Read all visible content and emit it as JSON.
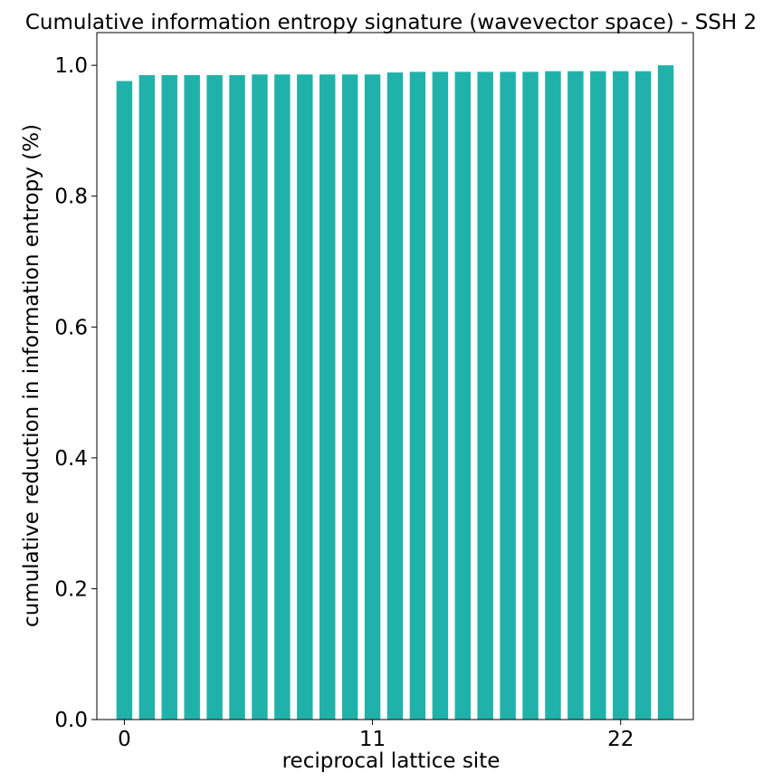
{
  "chart_data": {
    "type": "bar",
    "title": "Cumulative information entropy signature (wavevector space) - SSH 2",
    "xlabel": "reciprocal lattice site",
    "ylabel": "cumulative reduction in information entropy (%)",
    "x": [
      0,
      1,
      2,
      3,
      4,
      5,
      6,
      7,
      8,
      9,
      10,
      11,
      12,
      13,
      14,
      15,
      16,
      17,
      18,
      19,
      20,
      21,
      22,
      23,
      24
    ],
    "values": [
      0.976,
      0.985,
      0.985,
      0.985,
      0.985,
      0.985,
      0.986,
      0.986,
      0.986,
      0.986,
      0.986,
      0.986,
      0.989,
      0.99,
      0.99,
      0.99,
      0.99,
      0.99,
      0.99,
      0.991,
      0.991,
      0.991,
      0.991,
      0.991,
      1.0
    ],
    "xticks": [
      0,
      11,
      22
    ],
    "yticks": [
      0.0,
      0.2,
      0.4,
      0.6,
      0.8,
      1.0
    ],
    "ytick_labels": [
      "0.0",
      "0.2",
      "0.4",
      "0.6",
      "0.8",
      "1.0"
    ],
    "xlim": [
      -1.22,
      25.22
    ],
    "ylim": [
      0,
      1.05
    ],
    "bar_color": "#20b2aa",
    "grid": false,
    "legend": "none"
  }
}
